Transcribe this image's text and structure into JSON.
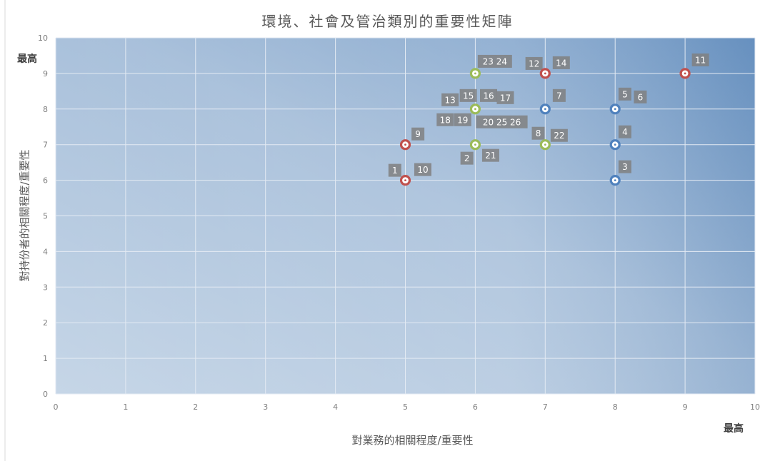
{
  "chart_data": {
    "type": "scatter",
    "title": "環境、社會及管治類別的重要性矩陣",
    "xlabel": "對業務的相關程度/重要性",
    "ylabel": "對持份者的相關程度/重要性",
    "x_high_label": "最高",
    "y_high_label": "最高",
    "xlim": [
      0,
      10
    ],
    "ylim": [
      0,
      10
    ],
    "x_ticks": [
      "0",
      "1",
      "2",
      "3",
      "4",
      "5",
      "6",
      "7",
      "8",
      "9",
      "10"
    ],
    "y_ticks": [
      "0",
      "1",
      "2",
      "3",
      "4",
      "5",
      "6",
      "7",
      "8",
      "9",
      "10"
    ],
    "grid": true,
    "colors": {
      "red": "#c0504d",
      "green": "#9bbb59",
      "blue": "#4f81bd"
    },
    "points": [
      {
        "x": 5,
        "y": 6,
        "color": "red"
      },
      {
        "x": 5,
        "y": 7,
        "color": "red"
      },
      {
        "x": 6,
        "y": 7,
        "color": "green"
      },
      {
        "x": 6,
        "y": 8,
        "color": "green"
      },
      {
        "x": 6,
        "y": 9,
        "color": "green"
      },
      {
        "x": 7,
        "y": 7,
        "color": "green"
      },
      {
        "x": 7,
        "y": 8,
        "color": "blue"
      },
      {
        "x": 7,
        "y": 9,
        "color": "red"
      },
      {
        "x": 8,
        "y": 6,
        "color": "blue"
      },
      {
        "x": 8,
        "y": 7,
        "color": "blue"
      },
      {
        "x": 8,
        "y": 8,
        "color": "blue"
      },
      {
        "x": 9,
        "y": 9,
        "color": "red"
      }
    ],
    "annotations": [
      {
        "text": "1",
        "x": 4.85,
        "y": 6.28
      },
      {
        "text": "10",
        "x": 5.25,
        "y": 6.3
      },
      {
        "text": "9",
        "x": 5.18,
        "y": 7.3
      },
      {
        "text": "2",
        "x": 5.88,
        "y": 6.62
      },
      {
        "text": "21",
        "x": 6.22,
        "y": 6.7
      },
      {
        "text": "23 24",
        "x": 6.28,
        "y": 9.34
      },
      {
        "text": "13",
        "x": 5.64,
        "y": 8.26
      },
      {
        "text": "15",
        "x": 5.9,
        "y": 8.38
      },
      {
        "text": "16",
        "x": 6.19,
        "y": 8.38
      },
      {
        "text": "17",
        "x": 6.43,
        "y": 8.32
      },
      {
        "text": "18",
        "x": 5.57,
        "y": 7.7
      },
      {
        "text": "19",
        "x": 5.82,
        "y": 7.7
      },
      {
        "text": "20 25 26",
        "x": 6.38,
        "y": 7.64
      },
      {
        "text": "12",
        "x": 6.84,
        "y": 9.28
      },
      {
        "text": "14",
        "x": 7.23,
        "y": 9.3
      },
      {
        "text": "7",
        "x": 7.2,
        "y": 8.38
      },
      {
        "text": "8",
        "x": 6.9,
        "y": 7.32
      },
      {
        "text": "22",
        "x": 7.2,
        "y": 7.26
      },
      {
        "text": "5",
        "x": 8.14,
        "y": 8.42
      },
      {
        "text": "6",
        "x": 8.36,
        "y": 8.34
      },
      {
        "text": "4",
        "x": 8.14,
        "y": 7.36
      },
      {
        "text": "3",
        "x": 8.14,
        "y": 6.38
      },
      {
        "text": "11",
        "x": 9.22,
        "y": 9.38
      }
    ]
  }
}
